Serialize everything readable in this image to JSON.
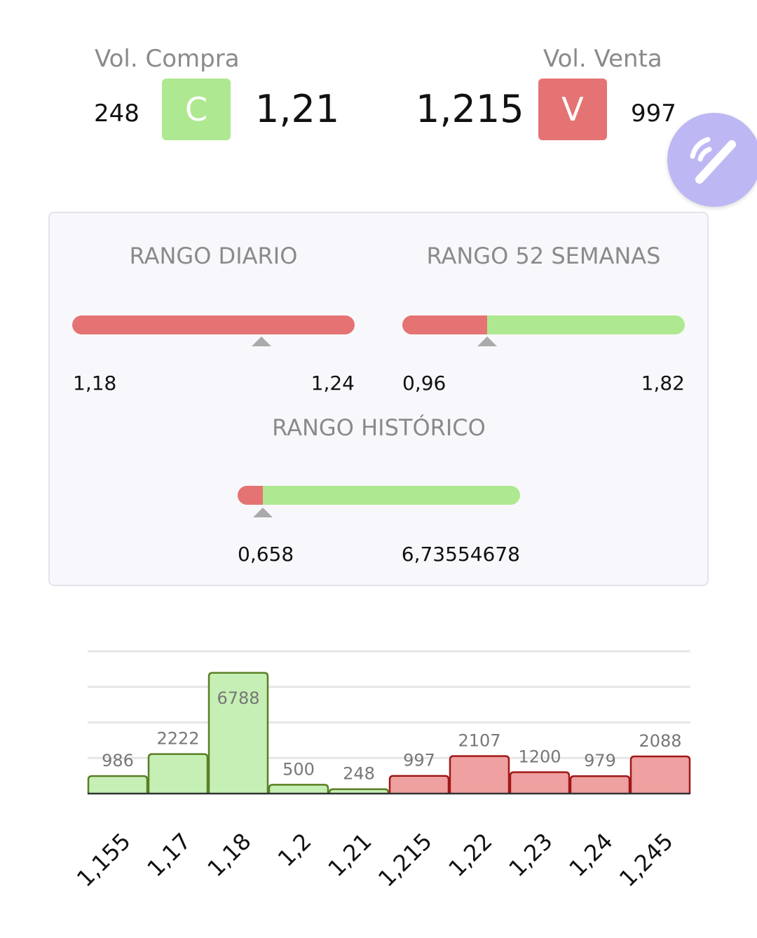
{
  "header": {
    "buy": {
      "label": "Vol. Compra",
      "volume": "248",
      "badge": "C",
      "price": "1,21",
      "color": "#aee890"
    },
    "sell": {
      "label": "Vol. Venta",
      "volume": "997",
      "badge": "V",
      "price": "1,215",
      "color": "#e57373"
    },
    "fab_icon": "pencil-signal-icon"
  },
  "ranges": {
    "daily": {
      "title": "RANGO DIARIO",
      "min": "1,18",
      "max": "1,24",
      "marker_fraction": 0.67,
      "red_fraction": 1.0
    },
    "weeks52": {
      "title": "RANGO 52 SEMANAS",
      "min": "0,96",
      "max": "1,82",
      "marker_fraction": 0.3,
      "red_fraction": 0.3
    },
    "historic": {
      "title": "RANGO HISTÓRICO",
      "min": "0,658",
      "max": "6,73554678",
      "marker_fraction": 0.09,
      "red_fraction": 0.09
    }
  },
  "chart_data": {
    "type": "bar",
    "categories": [
      "1,155",
      "1,17",
      "1,18",
      "1,2",
      "1,21",
      "1,215",
      "1,22",
      "1,23",
      "1,24",
      "1,245"
    ],
    "values": [
      986,
      2222,
      6788,
      500,
      248,
      997,
      2107,
      1200,
      979,
      2088
    ],
    "sides": [
      "buy",
      "buy",
      "buy",
      "buy",
      "buy",
      "sell",
      "sell",
      "sell",
      "sell",
      "sell"
    ],
    "ylim": [
      0,
      8000
    ],
    "grid": true,
    "colors": {
      "buy_fill": "#c5efb4",
      "buy_stroke": "#5a7f24",
      "sell_fill": "#efa0a0",
      "sell_stroke": "#a01818"
    }
  }
}
